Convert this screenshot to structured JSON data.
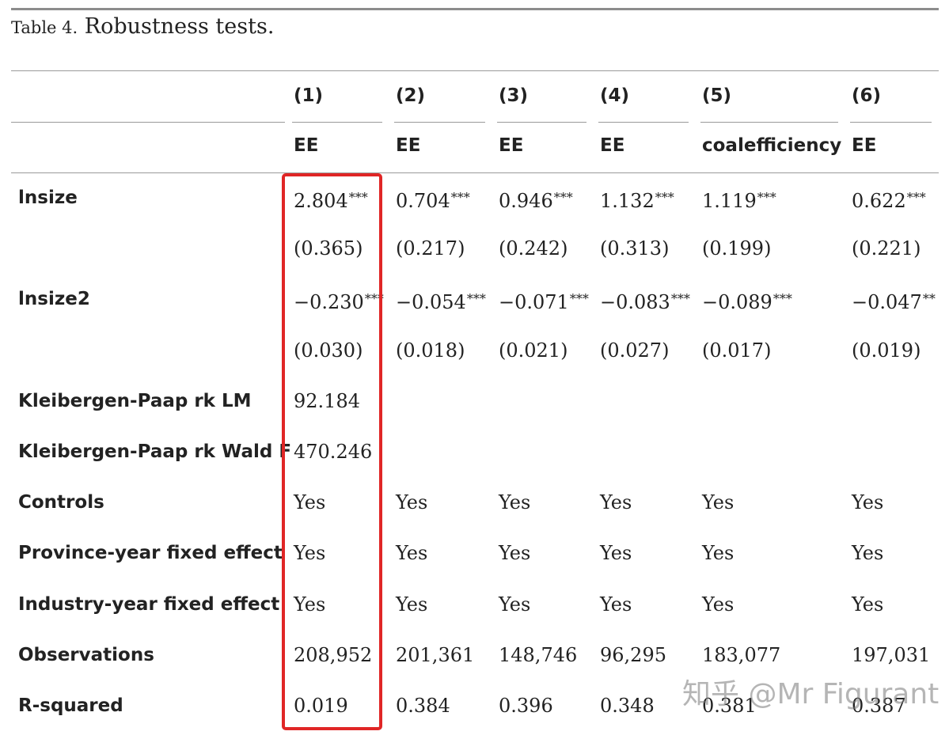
{
  "table": {
    "caption_label": "Table 4.",
    "caption_title": "Robustness tests.",
    "column_numbers": [
      "(1)",
      "(2)",
      "(3)",
      "(4)",
      "(5)",
      "(6)"
    ],
    "dependent_variables": [
      "EE",
      "EE",
      "EE",
      "EE",
      "coalefficiency",
      "EE"
    ],
    "rows": [
      {
        "label": "lnsize",
        "values": [
          {
            "v": "2.804",
            "s": "***"
          },
          {
            "v": "0.704",
            "s": "***"
          },
          {
            "v": "0.946",
            "s": "***"
          },
          {
            "v": "1.132",
            "s": "***"
          },
          {
            "v": "1.119",
            "s": "***"
          },
          {
            "v": "0.622",
            "s": "***"
          }
        ]
      },
      {
        "label": "",
        "values": [
          {
            "v": "(0.365)",
            "s": ""
          },
          {
            "v": "(0.217)",
            "s": ""
          },
          {
            "v": "(0.242)",
            "s": ""
          },
          {
            "v": "(0.313)",
            "s": ""
          },
          {
            "v": "(0.199)",
            "s": ""
          },
          {
            "v": "(0.221)",
            "s": ""
          }
        ]
      },
      {
        "label": "lnsize2",
        "values": [
          {
            "v": "−0.230",
            "s": "***"
          },
          {
            "v": "−0.054",
            "s": "***"
          },
          {
            "v": "−0.071",
            "s": "***"
          },
          {
            "v": "−0.083",
            "s": "***"
          },
          {
            "v": "−0.089",
            "s": "***"
          },
          {
            "v": "−0.047",
            "s": "**"
          }
        ]
      },
      {
        "label": "",
        "values": [
          {
            "v": "(0.030)",
            "s": ""
          },
          {
            "v": "(0.018)",
            "s": ""
          },
          {
            "v": "(0.021)",
            "s": ""
          },
          {
            "v": "(0.027)",
            "s": ""
          },
          {
            "v": "(0.017)",
            "s": ""
          },
          {
            "v": "(0.019)",
            "s": ""
          }
        ]
      },
      {
        "label": "Kleibergen-Paap rk LM",
        "values": [
          {
            "v": "92.184",
            "s": ""
          },
          {
            "v": "",
            "s": ""
          },
          {
            "v": "",
            "s": ""
          },
          {
            "v": "",
            "s": ""
          },
          {
            "v": "",
            "s": ""
          },
          {
            "v": "",
            "s": ""
          }
        ]
      },
      {
        "label": "Kleibergen-Paap rk Wald F",
        "values": [
          {
            "v": "470.246",
            "s": ""
          },
          {
            "v": "",
            "s": ""
          },
          {
            "v": "",
            "s": ""
          },
          {
            "v": "",
            "s": ""
          },
          {
            "v": "",
            "s": ""
          },
          {
            "v": "",
            "s": ""
          }
        ]
      },
      {
        "label": "Controls",
        "values": [
          {
            "v": "Yes",
            "s": ""
          },
          {
            "v": "Yes",
            "s": ""
          },
          {
            "v": "Yes",
            "s": ""
          },
          {
            "v": "Yes",
            "s": ""
          },
          {
            "v": "Yes",
            "s": ""
          },
          {
            "v": "Yes",
            "s": ""
          }
        ]
      },
      {
        "label": "Province-year fixed effect",
        "values": [
          {
            "v": "Yes",
            "s": ""
          },
          {
            "v": "Yes",
            "s": ""
          },
          {
            "v": "Yes",
            "s": ""
          },
          {
            "v": "Yes",
            "s": ""
          },
          {
            "v": "Yes",
            "s": ""
          },
          {
            "v": "Yes",
            "s": ""
          }
        ]
      },
      {
        "label": "Industry-year fixed effect",
        "values": [
          {
            "v": "Yes",
            "s": ""
          },
          {
            "v": "Yes",
            "s": ""
          },
          {
            "v": "Yes",
            "s": ""
          },
          {
            "v": "Yes",
            "s": ""
          },
          {
            "v": "Yes",
            "s": ""
          },
          {
            "v": "Yes",
            "s": ""
          }
        ]
      },
      {
        "label": "Observations",
        "values": [
          {
            "v": "208,952",
            "s": ""
          },
          {
            "v": "201,361",
            "s": ""
          },
          {
            "v": "148,746",
            "s": ""
          },
          {
            "v": "96,295",
            "s": ""
          },
          {
            "v": "183,077",
            "s": ""
          },
          {
            "v": "197,031",
            "s": ""
          }
        ]
      },
      {
        "label": "R-squared",
        "values": [
          {
            "v": "0.019",
            "s": ""
          },
          {
            "v": "0.384",
            "s": ""
          },
          {
            "v": "0.396",
            "s": ""
          },
          {
            "v": "0.348",
            "s": ""
          },
          {
            "v": "0.381",
            "s": ""
          },
          {
            "v": "0.387",
            "s": ""
          }
        ]
      }
    ]
  },
  "highlight": {
    "column": "(1)",
    "color": "#e02626"
  },
  "watermark": {
    "text": "知乎 @Mr Figurant"
  }
}
